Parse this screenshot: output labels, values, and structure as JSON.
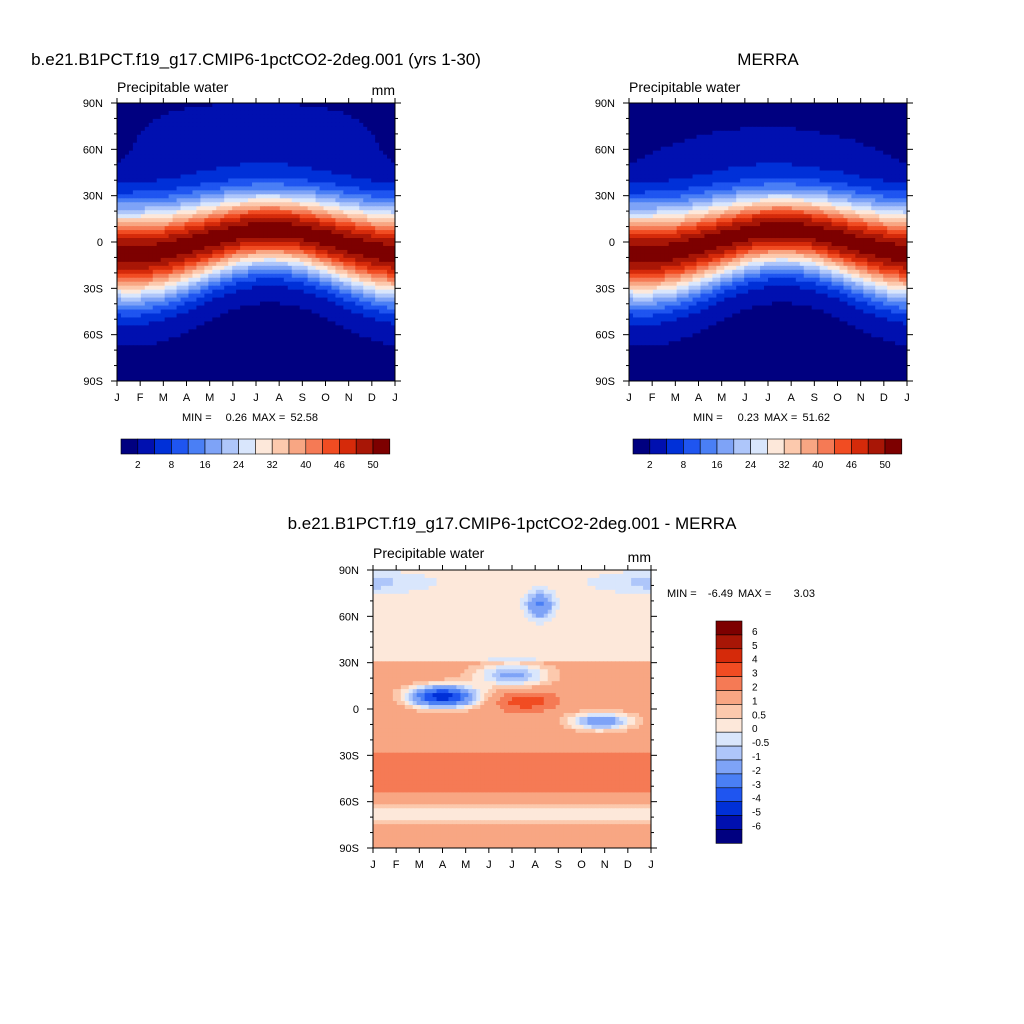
{
  "palettes": {
    "full": [
      "#000080",
      "#0010b0",
      "#0030d8",
      "#1f55f0",
      "#4a7ff5",
      "#7ea3f7",
      "#aec6fa",
      "#d9e6fc",
      "#fde8da",
      "#fcc9ad",
      "#f8a683",
      "#f57a55",
      "#f14c22",
      "#d52a0a",
      "#a81606",
      "#7d0000"
    ],
    "diff": [
      "#7d0000",
      "#a81606",
      "#d52a0a",
      "#f14c22",
      "#f57a55",
      "#f8a683",
      "#fcc9ad",
      "#fde8da",
      "#d9e6fc",
      "#aec6fa",
      "#7ea3f7",
      "#4a7ff5",
      "#1f55f0",
      "#0030d8",
      "#0010b0",
      "#000080"
    ]
  },
  "chart_data": [
    {
      "type": "heatmap",
      "title": "b.e21.B1PCT.f19_g17.CMIP6-1pctCO2-2deg.001 (yrs 1-30)",
      "left_label": "Precipitable water",
      "units": "mm",
      "x_ticks": [
        "J",
        "F",
        "M",
        "A",
        "M",
        "J",
        "J",
        "A",
        "S",
        "O",
        "N",
        "D",
        "J"
      ],
      "y_ticks": [
        "90N",
        "60N",
        "30N",
        "0",
        "30S",
        "60S",
        "90S"
      ],
      "min_label": "MIN =",
      "min_value": "0.26",
      "max_label": "MAX =",
      "max_value": "52.58",
      "colorbar_labels": [
        "2",
        "8",
        "16",
        "24",
        "32",
        "40",
        "46",
        "50"
      ],
      "colorbar_orientation": "horizontal"
    },
    {
      "type": "heatmap",
      "title": "MERRA",
      "left_label": "Precipitable water",
      "units": "",
      "x_ticks": [
        "J",
        "F",
        "M",
        "A",
        "M",
        "J",
        "J",
        "A",
        "S",
        "O",
        "N",
        "D",
        "J"
      ],
      "y_ticks": [
        "90N",
        "60N",
        "30N",
        "0",
        "30S",
        "60S",
        "90S"
      ],
      "min_label": "MIN =",
      "min_value": "0.23",
      "max_label": "MAX =",
      "max_value": "51.62",
      "colorbar_labels": [
        "2",
        "8",
        "16",
        "24",
        "32",
        "40",
        "46",
        "50"
      ],
      "colorbar_orientation": "horizontal"
    },
    {
      "type": "heatmap",
      "title": "b.e21.B1PCT.f19_g17.CMIP6-1pctCO2-2deg.001 - MERRA",
      "left_label": "Precipitable water",
      "units": "mm",
      "x_ticks": [
        "J",
        "F",
        "M",
        "A",
        "M",
        "J",
        "J",
        "A",
        "S",
        "O",
        "N",
        "D",
        "J"
      ],
      "y_ticks": [
        "90N",
        "60N",
        "30N",
        "0",
        "30S",
        "60S",
        "90S"
      ],
      "min_label": "MIN =",
      "min_value": "-6.49",
      "max_label": "MAX =",
      "max_value": "3.03",
      "colorbar_labels": [
        "6",
        "5",
        "4",
        "3",
        "2",
        "1",
        "0.5",
        "0",
        "-0.5",
        "-1",
        "-2",
        "-3",
        "-4",
        "-5",
        "-6"
      ],
      "colorbar_orientation": "vertical"
    }
  ]
}
